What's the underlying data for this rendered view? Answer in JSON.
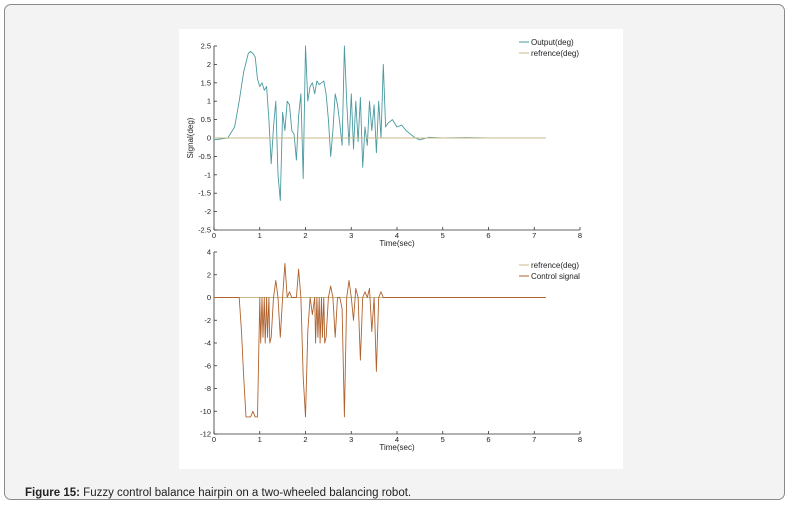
{
  "caption": {
    "label": "Figure 15:",
    "text": " Fuzzy control balance hairpin on a two-wheeled balancing robot."
  },
  "colors": {
    "output": "#4a9aa0",
    "reference": "#c9b98a",
    "control": "#b0622e",
    "axis": "#333333"
  },
  "chart_data": [
    {
      "type": "line",
      "xlabel": "Time(sec)",
      "ylabel": "Signal(deg)",
      "xlim": [
        0,
        8
      ],
      "ylim": [
        -2.5,
        2.5
      ],
      "xticks": [
        0,
        1,
        2,
        3,
        4,
        5,
        6,
        7,
        8
      ],
      "yticks": [
        2.5,
        2,
        1.5,
        1,
        0.5,
        0,
        -0.5,
        -1,
        -1.5,
        -2,
        -2.5
      ],
      "ytick_labels": [
        "2.5",
        "2",
        "1.5",
        "1",
        "0.5",
        "0",
        "-0.5",
        "-1",
        "-1.5",
        "-2",
        "-2.5"
      ],
      "legend": [
        "Output(deg)",
        "refrence(deg)"
      ],
      "legend_position": "top-right",
      "series": [
        {
          "name": "Output(deg)",
          "x": [
            0,
            0.3,
            0.45,
            0.55,
            0.65,
            0.75,
            0.8,
            0.85,
            0.9,
            0.95,
            1.0,
            1.05,
            1.1,
            1.15,
            1.2,
            1.25,
            1.3,
            1.35,
            1.4,
            1.45,
            1.5,
            1.55,
            1.6,
            1.65,
            1.7,
            1.75,
            1.8,
            1.85,
            1.9,
            1.95,
            2.0,
            2.05,
            2.1,
            2.15,
            2.2,
            2.25,
            2.3,
            2.35,
            2.4,
            2.45,
            2.5,
            2.55,
            2.6,
            2.65,
            2.7,
            2.75,
            2.8,
            2.85,
            2.9,
            2.95,
            3.0,
            3.05,
            3.1,
            3.15,
            3.2,
            3.25,
            3.3,
            3.35,
            3.4,
            3.45,
            3.5,
            3.55,
            3.6,
            3.65,
            3.7,
            3.75,
            3.8,
            3.9,
            4.0,
            4.1,
            4.2,
            4.3,
            4.4,
            4.5,
            4.7,
            5.0,
            5.5,
            6.0,
            6.5,
            7.0,
            7.25
          ],
          "y": [
            -0.05,
            0,
            0.3,
            1.0,
            1.8,
            2.3,
            2.35,
            2.3,
            2.2,
            1.6,
            1.4,
            1.5,
            1.3,
            1.4,
            0.5,
            -0.7,
            0.3,
            1.0,
            -1.0,
            -1.7,
            0.7,
            0.2,
            1.0,
            0.9,
            0.2,
            0.1,
            -0.6,
            0.6,
            1.2,
            -1.1,
            2.5,
            1.0,
            1.4,
            1.5,
            1.2,
            1.55,
            1.45,
            1.5,
            1.55,
            1.2,
            0.5,
            -0.5,
            0.2,
            1.2,
            0.9,
            0.4,
            -0.2,
            2.5,
            1.0,
            -0.2,
            1.2,
            -0.3,
            1.0,
            -0.1,
            1.1,
            -0.8,
            0.3,
            -0.2,
            1.0,
            0.2,
            0.9,
            -0.4,
            1.0,
            0.0,
            2.0,
            0.3,
            0.4,
            0.5,
            0.3,
            0.35,
            0.2,
            0.1,
            0.0,
            -0.05,
            0.02,
            0.0,
            0.01,
            0.0,
            0.0,
            0.0,
            0.0
          ]
        },
        {
          "name": "refrence(deg)",
          "x": [
            0,
            7.25
          ],
          "y": [
            0,
            0
          ]
        }
      ]
    },
    {
      "type": "line",
      "xlabel": "Time(sec)",
      "ylabel": "",
      "xlim": [
        0,
        8
      ],
      "ylim": [
        -12,
        4
      ],
      "xticks": [
        0,
        1,
        2,
        3,
        4,
        5,
        6,
        7,
        8
      ],
      "yticks": [
        4,
        2,
        0,
        -2,
        -4,
        -6,
        -8,
        -10,
        -12
      ],
      "ytick_labels": [
        "4",
        "2",
        "0",
        "-2",
        "-4",
        "-6",
        "-8",
        "-10",
        "-12"
      ],
      "legend": [
        "refrence(deg)",
        "Control signal"
      ],
      "legend_position": "top-right",
      "series": [
        {
          "name": "refrence(deg)",
          "x": [
            0,
            7.25
          ],
          "y": [
            0,
            0
          ]
        },
        {
          "name": "Control signal",
          "x": [
            0,
            0.55,
            0.6,
            0.65,
            0.7,
            0.75,
            0.8,
            0.85,
            0.9,
            0.95,
            1.0,
            1.02,
            1.05,
            1.07,
            1.1,
            1.12,
            1.15,
            1.17,
            1.2,
            1.22,
            1.25,
            1.3,
            1.35,
            1.4,
            1.45,
            1.5,
            1.55,
            1.6,
            1.65,
            1.7,
            1.75,
            1.8,
            1.85,
            1.9,
            1.95,
            2.0,
            2.05,
            2.1,
            2.15,
            2.2,
            2.22,
            2.25,
            2.27,
            2.3,
            2.32,
            2.35,
            2.37,
            2.4,
            2.42,
            2.45,
            2.5,
            2.55,
            2.6,
            2.65,
            2.7,
            2.75,
            2.8,
            2.85,
            2.9,
            2.95,
            3.0,
            3.05,
            3.1,
            3.15,
            3.2,
            3.25,
            3.3,
            3.35,
            3.4,
            3.45,
            3.5,
            3.55,
            3.6,
            3.65,
            3.7,
            3.75,
            3.8,
            7.25
          ],
          "y": [
            0,
            0,
            -3,
            -7,
            -10.5,
            -10.5,
            -10.5,
            -10,
            -10.5,
            -10.5,
            0,
            -4,
            0,
            -3.5,
            0,
            -4,
            0,
            -3.5,
            0,
            -4,
            -3.5,
            0,
            1.5,
            0,
            -3.5,
            0,
            3,
            0,
            0.5,
            0,
            0,
            0,
            2.5,
            0,
            -7,
            -10.5,
            -3,
            0,
            -1.5,
            0,
            -4,
            0,
            -3.5,
            0,
            -4,
            0,
            -3.5,
            0,
            -4,
            -3.5,
            0,
            1,
            0,
            -3.5,
            0,
            0,
            -1,
            -10.5,
            0,
            1.5,
            0,
            -2,
            0.8,
            0,
            -5.5,
            0,
            0.5,
            0,
            0.8,
            -3,
            0,
            -6.5,
            0,
            0.5,
            0,
            0,
            0,
            0
          ]
        }
      ]
    }
  ]
}
